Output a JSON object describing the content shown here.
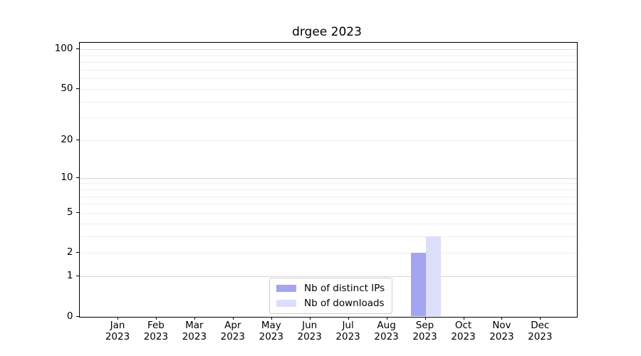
{
  "chart_data": {
    "type": "bar",
    "title": "drgee 2023",
    "categories": [
      "Jan 2023",
      "Feb 2023",
      "Mar 2023",
      "Apr 2023",
      "May 2023",
      "Jun 2023",
      "Jul 2023",
      "Aug 2023",
      "Sep 2023",
      "Oct 2023",
      "Nov 2023",
      "Dec 2023"
    ],
    "series": [
      {
        "name": "Nb of distinct IPs",
        "color": "#a3a5f0",
        "values": [
          0,
          0,
          0,
          0,
          0,
          0,
          0,
          0,
          2,
          0,
          0,
          0
        ]
      },
      {
        "name": "Nb of downloads",
        "color": "#dcdefa",
        "values": [
          0,
          0,
          0,
          0,
          0,
          0,
          0,
          0,
          3,
          0,
          0,
          0
        ]
      }
    ],
    "xlabel": "",
    "ylabel": "",
    "y_axis": {
      "scale": "log1p",
      "tick_values": [
        0,
        1,
        2,
        5,
        10,
        20,
        50,
        100
      ],
      "major_grid_values": [
        1,
        10,
        100
      ],
      "minor_grid_values": [
        2,
        3,
        4,
        5,
        6,
        7,
        8,
        9,
        20,
        30,
        40,
        50,
        60,
        70,
        80,
        90
      ],
      "ymax": 113
    },
    "legend": {
      "position": "bottom-center",
      "entries": [
        "Nb of distinct IPs",
        "Nb of downloads"
      ]
    },
    "grid": true
  },
  "colors": {
    "background": "#ffffff",
    "axis": "#000000",
    "major_grid": "#d8d8d8",
    "minor_grid": "#eeeeee",
    "legend_border": "#cccccc",
    "bar_distinct_ips": "#a3a5f0",
    "bar_downloads": "#dcdefa"
  }
}
